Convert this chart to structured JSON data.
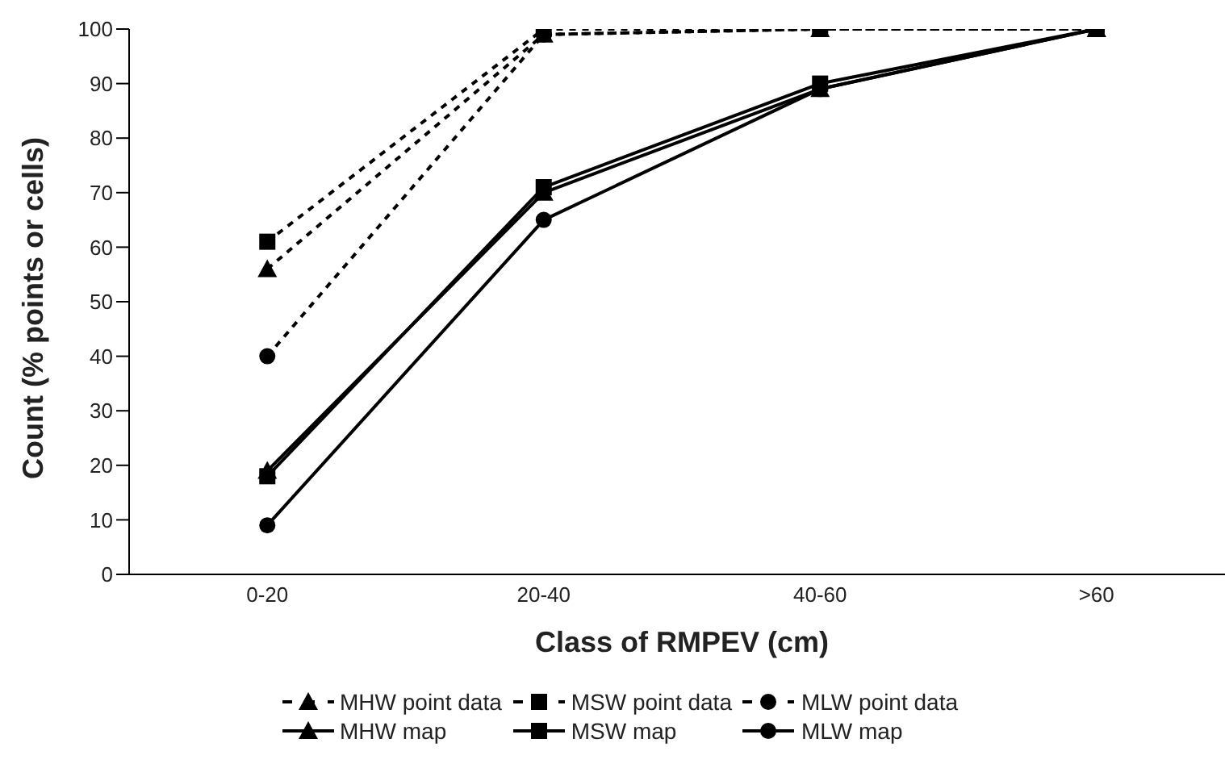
{
  "chart_data": {
    "type": "line",
    "xlabel": "Class of RMPEV (cm)",
    "ylabel": "Count (% points or cells)",
    "categories": [
      "0-20",
      "20-40",
      "40-60",
      ">60"
    ],
    "series": [
      {
        "name": "MHW point data",
        "color": "#000000",
        "marker": "triangle",
        "line_style": "dashed",
        "values": [
          56,
          99,
          100,
          100
        ]
      },
      {
        "name": "MSW point data",
        "color": "#000000",
        "marker": "square",
        "line_style": "dashed",
        "values": [
          61,
          100,
          100,
          100
        ]
      },
      {
        "name": "MLW point data",
        "color": "#000000",
        "marker": "circle",
        "line_style": "dashed",
        "values": [
          40,
          99,
          100,
          100
        ]
      },
      {
        "name": "MHW map",
        "color": "#000000",
        "marker": "triangle",
        "line_style": "solid",
        "values": [
          19,
          70,
          89,
          100
        ]
      },
      {
        "name": "MSW map",
        "color": "#000000",
        "marker": "square",
        "line_style": "solid",
        "values": [
          18,
          71,
          90,
          100
        ]
      },
      {
        "name": "MLW map",
        "color": "#000000",
        "marker": "circle",
        "line_style": "solid",
        "values": [
          9,
          65,
          89,
          100
        ]
      }
    ],
    "ylim": [
      0,
      100
    ],
    "yticks": [
      0,
      10,
      20,
      30,
      40,
      50,
      60,
      70,
      80,
      90,
      100
    ],
    "grid": false,
    "legend": "bottom"
  }
}
